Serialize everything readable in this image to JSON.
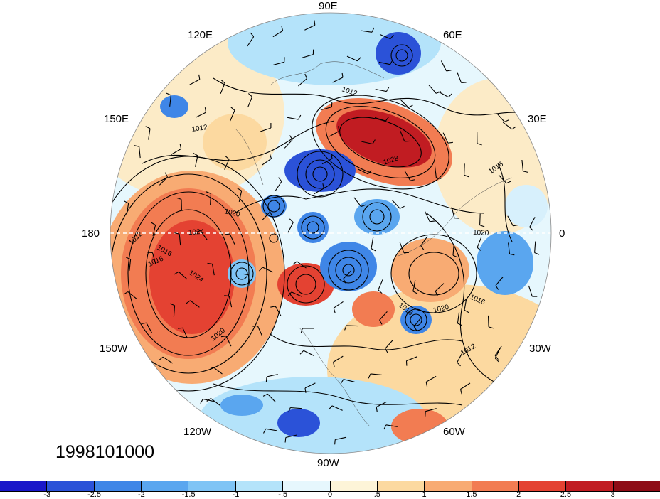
{
  "date_stamp": "1998101000",
  "longitude_labels": [
    "90E",
    "60E",
    "120E",
    "30E",
    "150E",
    "180",
    "0",
    "150W",
    "30W",
    "120W",
    "60W",
    "90W"
  ],
  "contour_labels": [
    "1012",
    "1012",
    "1016",
    "1016",
    "1020",
    "1020",
    "1024",
    "1024",
    "1028",
    "1012",
    "1016",
    "1020",
    "1016",
    "1020",
    "1016",
    "1012"
  ],
  "colorbar": {
    "labels": [
      "-3",
      "-2.5",
      "-2",
      "-1.5",
      "-1",
      "-.5",
      "0",
      ".5",
      "1",
      "1.5",
      "2",
      "2.5",
      "3"
    ],
    "colors": [
      "#1a17c9",
      "#2b52d8",
      "#3f86e7",
      "#5aa6ef",
      "#7fc4f5",
      "#b4e3fa",
      "#e6f7fd",
      "#fdf4d8",
      "#fcd9a0",
      "#f8ab73",
      "#f27c52",
      "#e44232",
      "#c11c22",
      "#8e0c16"
    ]
  },
  "anomaly_colors": {
    "strong_negative": "#2b52d8",
    "negative": "#7fc4f5",
    "weak_negative": "#d7f0fc",
    "weak_positive": "#fcebc7",
    "positive": "#f8ab73",
    "strong_positive": "#e44232",
    "max_positive": "#c11c22"
  }
}
